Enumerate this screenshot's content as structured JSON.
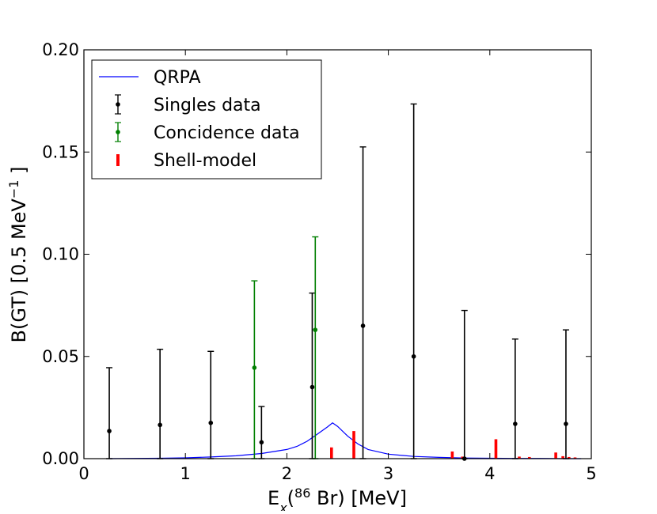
{
  "chart_data": {
    "type": "scatter",
    "title": "",
    "xlabel": {
      "prefix": "E",
      "sub": "x",
      "open": "(",
      "sup": "86",
      "rest": " Br) [MeV]"
    },
    "ylabel": {
      "prefix": "B(GT) [0.5 MeV",
      "sup": "−1",
      "rest": " ]"
    },
    "xlim": [
      0,
      5
    ],
    "ylim": [
      0,
      0.2
    ],
    "xticks": [
      0,
      1,
      2,
      3,
      4,
      5
    ],
    "xtick_labels": [
      "0",
      "1",
      "2",
      "3",
      "4",
      "5"
    ],
    "yticks": [
      0,
      0.05,
      0.1,
      0.15,
      0.2
    ],
    "ytick_labels": [
      "0.00",
      "0.05",
      "0.10",
      "0.15",
      "0.20"
    ],
    "legend_position": "top-left",
    "colors": {
      "qrpa": "#0000ff",
      "singles": "#000000",
      "coincidence": "#007f00",
      "shell": "#ff0000"
    },
    "series": [
      {
        "name": "QRPA",
        "kind": "line",
        "x": [
          0.25,
          0.5,
          0.75,
          1.0,
          1.25,
          1.5,
          1.75,
          2.0,
          2.1,
          2.2,
          2.3,
          2.4,
          2.45,
          2.5,
          2.6,
          2.7,
          2.8,
          3.0,
          3.25,
          3.5,
          3.75,
          4.0,
          4.25,
          4.5,
          4.75,
          4.9
        ],
        "y": [
          0.0,
          0.0001,
          0.0002,
          0.0004,
          0.0008,
          0.0014,
          0.0025,
          0.0045,
          0.006,
          0.0085,
          0.012,
          0.0155,
          0.0175,
          0.0158,
          0.011,
          0.0072,
          0.0045,
          0.0022,
          0.0011,
          0.0006,
          0.0003,
          0.0002,
          0.0001,
          0.0001,
          0.0,
          0.0
        ]
      },
      {
        "name": "Singles data",
        "kind": "errorbar",
        "points": [
          {
            "x": 0.25,
            "y": 0.0135,
            "lo": 0.0,
            "hi": 0.0445
          },
          {
            "x": 0.75,
            "y": 0.0165,
            "lo": 0.0,
            "hi": 0.0535
          },
          {
            "x": 1.25,
            "y": 0.0175,
            "lo": 0.0,
            "hi": 0.0525
          },
          {
            "x": 1.75,
            "y": 0.008,
            "lo": 0.0,
            "hi": 0.0255
          },
          {
            "x": 2.25,
            "y": 0.035,
            "lo": 0.0,
            "hi": 0.081
          },
          {
            "x": 2.75,
            "y": 0.065,
            "lo": 0.0,
            "hi": 0.1525
          },
          {
            "x": 3.25,
            "y": 0.05,
            "lo": 0.0,
            "hi": 0.1735
          },
          {
            "x": 3.75,
            "y": 0.0,
            "lo": 0.0,
            "hi": 0.0725
          },
          {
            "x": 4.25,
            "y": 0.017,
            "lo": 0.0,
            "hi": 0.0585
          },
          {
            "x": 4.75,
            "y": 0.017,
            "lo": 0.0,
            "hi": 0.063
          }
        ]
      },
      {
        "name": "Concidence data",
        "kind": "errorbar",
        "points": [
          {
            "x": 1.68,
            "y": 0.0445,
            "lo": 0.0,
            "hi": 0.087
          },
          {
            "x": 2.28,
            "y": 0.063,
            "lo": 0.0,
            "hi": 0.1085
          }
        ]
      },
      {
        "name": "Shell-model",
        "kind": "bar",
        "x": [
          2.44,
          2.66,
          3.63,
          3.73,
          4.06,
          4.29,
          4.39,
          4.65,
          4.72,
          4.78,
          4.84
        ],
        "y": [
          0.0055,
          0.0135,
          0.0035,
          0.001,
          0.0095,
          0.001,
          0.0008,
          0.003,
          0.0012,
          0.0008,
          0.0006
        ]
      }
    ],
    "legend": [
      "QRPA",
      "Singles data",
      "Concidence data",
      "Shell-model"
    ]
  }
}
